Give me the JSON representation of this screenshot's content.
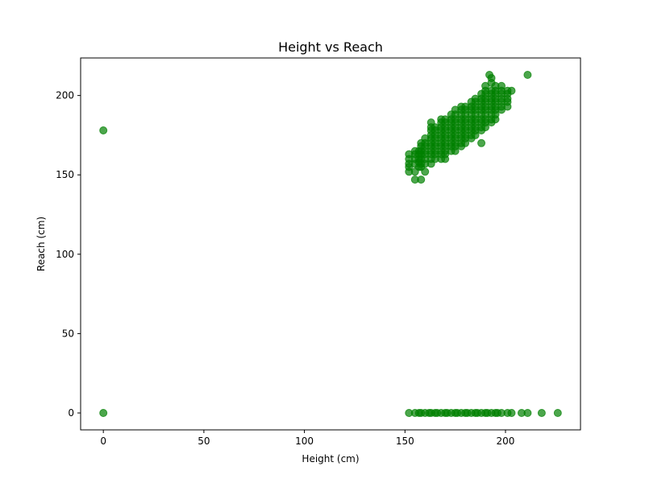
{
  "chart_data": {
    "type": "scatter",
    "title": "Height vs Reach",
    "xlabel": "Height (cm)",
    "ylabel": "Reach (cm)",
    "xlim": [
      -11.3,
      237.3
    ],
    "ylim": [
      -10.65,
      223.65
    ],
    "xticks": [
      0,
      50,
      100,
      150,
      200
    ],
    "yticks": [
      0,
      50,
      100,
      150,
      200
    ],
    "xtick_labels": [
      "0",
      "50",
      "100",
      "150",
      "200"
    ],
    "ytick_labels": [
      "0",
      "50",
      "100",
      "150",
      "200"
    ],
    "grid": false,
    "legend": false,
    "marker_color": "#008000",
    "marker_alpha": 0.7,
    "series": [
      {
        "points": [
          [
            0,
            0
          ],
          [
            0,
            178
          ],
          [
            152,
            0
          ],
          [
            155,
            0
          ],
          [
            157,
            0
          ],
          [
            158,
            0
          ],
          [
            160,
            0
          ],
          [
            162,
            0
          ],
          [
            163,
            0
          ],
          [
            165,
            0
          ],
          [
            166,
            0
          ],
          [
            168,
            0
          ],
          [
            170,
            0
          ],
          [
            171,
            0
          ],
          [
            173,
            0
          ],
          [
            175,
            0
          ],
          [
            176,
            0
          ],
          [
            178,
            0
          ],
          [
            180,
            0
          ],
          [
            181,
            0
          ],
          [
            183,
            0
          ],
          [
            185,
            0
          ],
          [
            186,
            0
          ],
          [
            188,
            0
          ],
          [
            190,
            0
          ],
          [
            191,
            0
          ],
          [
            193,
            0
          ],
          [
            195,
            0
          ],
          [
            196,
            0
          ],
          [
            198,
            0
          ],
          [
            201,
            0
          ],
          [
            203,
            0
          ],
          [
            208,
            0
          ],
          [
            211,
            0
          ],
          [
            218,
            0
          ],
          [
            226,
            0
          ],
          [
            152,
            152
          ],
          [
            152,
            155
          ],
          [
            152,
            157
          ],
          [
            152,
            160
          ],
          [
            152,
            163
          ],
          [
            155,
            147
          ],
          [
            155,
            152
          ],
          [
            155,
            157
          ],
          [
            155,
            160
          ],
          [
            155,
            163
          ],
          [
            155,
            165
          ],
          [
            157,
            155
          ],
          [
            157,
            158
          ],
          [
            157,
            160
          ],
          [
            157,
            163
          ],
          [
            157,
            165
          ],
          [
            158,
            147
          ],
          [
            158,
            155
          ],
          [
            158,
            157
          ],
          [
            158,
            160
          ],
          [
            158,
            163
          ],
          [
            158,
            165
          ],
          [
            158,
            168
          ],
          [
            158,
            170
          ],
          [
            160,
            152
          ],
          [
            160,
            157
          ],
          [
            160,
            160
          ],
          [
            160,
            163
          ],
          [
            160,
            165
          ],
          [
            160,
            168
          ],
          [
            160,
            170
          ],
          [
            160,
            173
          ],
          [
            163,
            157
          ],
          [
            163,
            160
          ],
          [
            163,
            163
          ],
          [
            163,
            165
          ],
          [
            163,
            168
          ],
          [
            163,
            170
          ],
          [
            163,
            173
          ],
          [
            163,
            175
          ],
          [
            163,
            178
          ],
          [
            163,
            180
          ],
          [
            163,
            183
          ],
          [
            165,
            160
          ],
          [
            165,
            163
          ],
          [
            165,
            165
          ],
          [
            165,
            168
          ],
          [
            165,
            170
          ],
          [
            165,
            173
          ],
          [
            165,
            175
          ],
          [
            165,
            178
          ],
          [
            165,
            180
          ],
          [
            168,
            160
          ],
          [
            168,
            163
          ],
          [
            168,
            165
          ],
          [
            168,
            168
          ],
          [
            168,
            170
          ],
          [
            168,
            173
          ],
          [
            168,
            175
          ],
          [
            168,
            178
          ],
          [
            168,
            180
          ],
          [
            168,
            183
          ],
          [
            168,
            185
          ],
          [
            170,
            160
          ],
          [
            170,
            163
          ],
          [
            170,
            165
          ],
          [
            170,
            168
          ],
          [
            170,
            170
          ],
          [
            170,
            173
          ],
          [
            170,
            175
          ],
          [
            170,
            178
          ],
          [
            170,
            180
          ],
          [
            170,
            183
          ],
          [
            170,
            185
          ],
          [
            173,
            165
          ],
          [
            173,
            168
          ],
          [
            173,
            170
          ],
          [
            173,
            173
          ],
          [
            173,
            175
          ],
          [
            173,
            178
          ],
          [
            173,
            180
          ],
          [
            173,
            183
          ],
          [
            173,
            185
          ],
          [
            173,
            188
          ],
          [
            175,
            165
          ],
          [
            175,
            168
          ],
          [
            175,
            170
          ],
          [
            175,
            173
          ],
          [
            175,
            175
          ],
          [
            175,
            178
          ],
          [
            175,
            180
          ],
          [
            175,
            183
          ],
          [
            175,
            185
          ],
          [
            175,
            188
          ],
          [
            175,
            191
          ],
          [
            178,
            168
          ],
          [
            178,
            170
          ],
          [
            178,
            173
          ],
          [
            178,
            175
          ],
          [
            178,
            178
          ],
          [
            178,
            180
          ],
          [
            178,
            183
          ],
          [
            178,
            185
          ],
          [
            178,
            188
          ],
          [
            178,
            191
          ],
          [
            178,
            193
          ],
          [
            180,
            170
          ],
          [
            180,
            173
          ],
          [
            180,
            175
          ],
          [
            180,
            178
          ],
          [
            180,
            180
          ],
          [
            180,
            183
          ],
          [
            180,
            185
          ],
          [
            180,
            188
          ],
          [
            180,
            191
          ],
          [
            180,
            193
          ],
          [
            183,
            173
          ],
          [
            183,
            175
          ],
          [
            183,
            178
          ],
          [
            183,
            180
          ],
          [
            183,
            183
          ],
          [
            183,
            185
          ],
          [
            183,
            188
          ],
          [
            183,
            191
          ],
          [
            183,
            193
          ],
          [
            183,
            196
          ],
          [
            185,
            175
          ],
          [
            185,
            178
          ],
          [
            185,
            180
          ],
          [
            185,
            183
          ],
          [
            185,
            185
          ],
          [
            185,
            188
          ],
          [
            185,
            191
          ],
          [
            185,
            193
          ],
          [
            185,
            196
          ],
          [
            185,
            198
          ],
          [
            188,
            170
          ],
          [
            188,
            178
          ],
          [
            188,
            180
          ],
          [
            188,
            183
          ],
          [
            188,
            185
          ],
          [
            188,
            188
          ],
          [
            188,
            191
          ],
          [
            188,
            193
          ],
          [
            188,
            196
          ],
          [
            188,
            198
          ],
          [
            188,
            201
          ],
          [
            190,
            180
          ],
          [
            190,
            183
          ],
          [
            190,
            185
          ],
          [
            190,
            188
          ],
          [
            190,
            191
          ],
          [
            190,
            193
          ],
          [
            190,
            196
          ],
          [
            190,
            198
          ],
          [
            190,
            201
          ],
          [
            190,
            203
          ],
          [
            190,
            206
          ],
          [
            193,
            183
          ],
          [
            193,
            185
          ],
          [
            193,
            188
          ],
          [
            193,
            191
          ],
          [
            193,
            193
          ],
          [
            193,
            196
          ],
          [
            193,
            198
          ],
          [
            193,
            201
          ],
          [
            193,
            203
          ],
          [
            193,
            208
          ],
          [
            193,
            211
          ],
          [
            195,
            185
          ],
          [
            195,
            188
          ],
          [
            195,
            191
          ],
          [
            195,
            193
          ],
          [
            195,
            196
          ],
          [
            195,
            198
          ],
          [
            195,
            201
          ],
          [
            195,
            203
          ],
          [
            195,
            206
          ],
          [
            198,
            191
          ],
          [
            198,
            193
          ],
          [
            198,
            196
          ],
          [
            198,
            198
          ],
          [
            198,
            201
          ],
          [
            198,
            203
          ],
          [
            198,
            206
          ],
          [
            201,
            193
          ],
          [
            201,
            196
          ],
          [
            201,
            198
          ],
          [
            201,
            201
          ],
          [
            201,
            203
          ],
          [
            203,
            203
          ],
          [
            211,
            213
          ],
          [
            192,
            213
          ]
        ]
      }
    ]
  }
}
